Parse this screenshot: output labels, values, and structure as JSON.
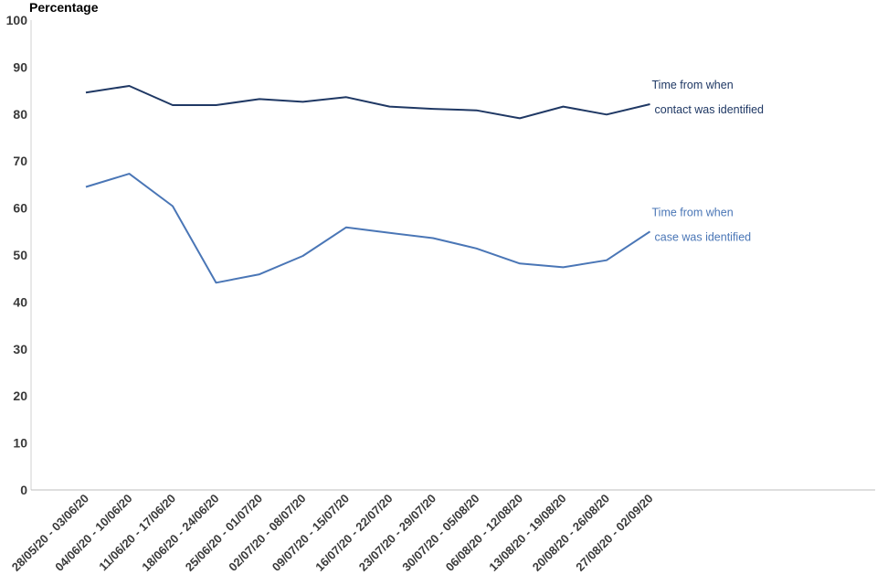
{
  "chart_data": {
    "type": "line",
    "ylabel": "Percentage",
    "xlabel": "",
    "title": "",
    "ylim": [
      0,
      100
    ],
    "yticks": [
      0,
      10,
      20,
      30,
      40,
      50,
      60,
      70,
      80,
      90,
      100
    ],
    "grid": false,
    "categories": [
      "28/05/20 - 03/06/20",
      "04/06/20 - 10/06/20",
      "11/06/20 - 17/06/20",
      "18/06/20 - 24/06/20",
      "25/06/20 - 01/07/20",
      "02/07/20 - 08/07/20",
      "09/07/20 - 15/07/20",
      "16/07/20 - 22/07/20",
      "23/07/20 - 29/07/20",
      "30/07/20 - 05/08/20",
      "06/08/20 - 12/08/20",
      "13/08/20 - 19/08/20",
      "20/08/20 - 26/08/20",
      "27/08/20 - 02/09/20"
    ],
    "series": [
      {
        "name": "Time from when contact was identified",
        "label_lines": [
          "Time from when",
          "contact was identified"
        ],
        "color": "#1f3864",
        "values": [
          84.6,
          86.0,
          81.9,
          81.9,
          83.2,
          82.6,
          83.6,
          81.6,
          81.1,
          80.8,
          79.1,
          81.6,
          79.9,
          82.1
        ]
      },
      {
        "name": "Time from when case was identified",
        "label_lines": [
          "Time from when",
          "case was identified"
        ],
        "color": "#4a76b6",
        "values": [
          64.5,
          67.3,
          60.4,
          44.1,
          45.9,
          49.8,
          55.9,
          54.7,
          53.6,
          51.4,
          48.2,
          47.4,
          48.9,
          55.0
        ]
      }
    ]
  }
}
